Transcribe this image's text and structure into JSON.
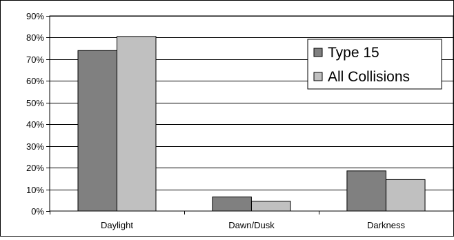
{
  "chart_data": {
    "type": "bar",
    "title": "",
    "xlabel": "",
    "ylabel": "",
    "categories": [
      "Daylight",
      "Dawn/Dusk",
      "Darkness"
    ],
    "series": [
      {
        "name": "Type 15",
        "values": [
          74,
          6.5,
          18.5
        ],
        "color": "#808080"
      },
      {
        "name": "All Collisions",
        "values": [
          80.5,
          4.5,
          14.5
        ],
        "color": "#c0c0c0"
      }
    ],
    "ylim": [
      0,
      90
    ],
    "yticks": [
      0,
      10,
      20,
      30,
      40,
      50,
      60,
      70,
      80,
      90
    ],
    "ytick_labels": [
      "0%",
      "10%",
      "20%",
      "30%",
      "40%",
      "50%",
      "60%",
      "70%",
      "80%",
      "90%"
    ],
    "grid": true,
    "legend_position": "top-right"
  }
}
